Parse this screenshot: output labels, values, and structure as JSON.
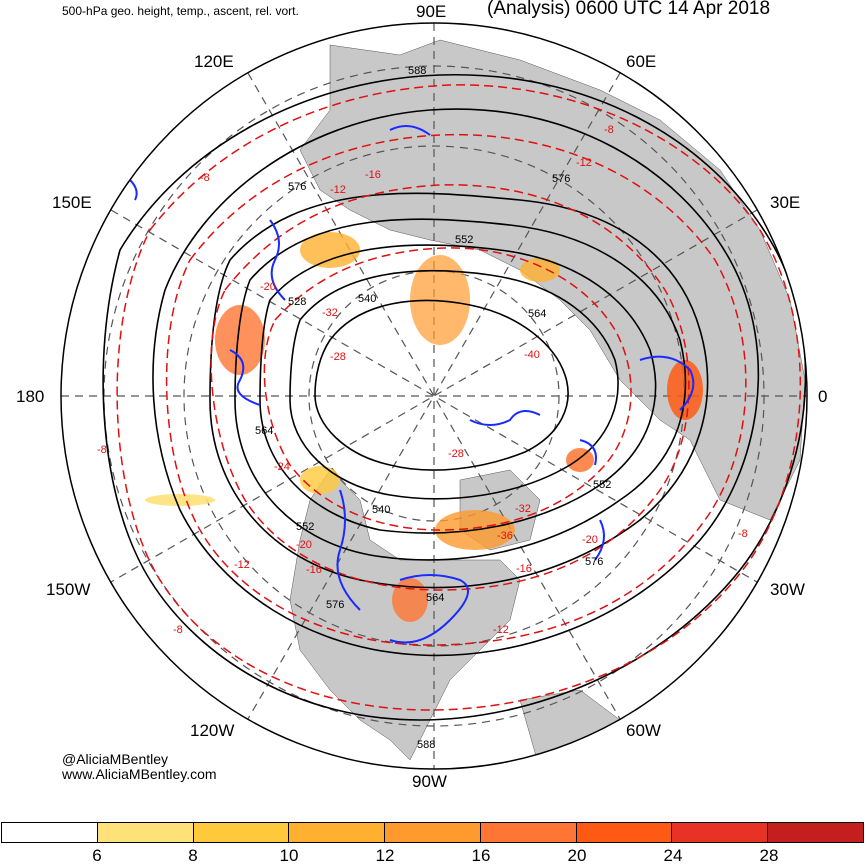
{
  "header": {
    "left_title": "500-hPa geo. height, temp., ascent, rel. vort.",
    "right_title": "(Analysis) 0600 UTC 14 Apr 2018"
  },
  "longitude_labels": {
    "n90e": "90E",
    "n60e": "60E",
    "n120e": "120E",
    "n30e": "30E",
    "n150e": "150E",
    "n0": "0",
    "n180": "180",
    "n150w": "150W",
    "n30w": "30W",
    "n120w": "120W",
    "n60w": "60W",
    "n90w": "90W"
  },
  "contour_labels": {
    "h588_top": "588",
    "h576_nw": "576",
    "h576_ne": "576",
    "h552_n": "552",
    "h540_n": "540",
    "h528": "528",
    "h564_e": "564",
    "h564_w": "564",
    "h540_s": "540",
    "h552_sw": "552",
    "h552_se": "552",
    "h576_se": "576",
    "h576_s": "576",
    "h588_bottom": "588",
    "h564_s": "564",
    "t_m8_top": "-8",
    "t_m8_w": "-8",
    "t_m8_e": "-8",
    "t_m8_sw": "-8",
    "t_m8_s": "-8",
    "t_m12_nw": "-12",
    "t_m12_ne": "-12",
    "t_m12_sw": "-12",
    "t_m12_se": "-12",
    "t_m16_n": "-16",
    "t_m16_s": "-16",
    "t_m16_se": "-16",
    "t_m20_w": "-20",
    "t_m20_sw": "-20",
    "t_m20_se": "-20",
    "t_m24_w": "-24",
    "t_m28_w": "-28",
    "t_m28_c": "-28",
    "t_m32_w": "-32",
    "t_m32_s": "-32",
    "t_m36_c": "-36",
    "t_m40_e": "-40"
  },
  "credit": {
    "handle": "@AliciaMBentley",
    "website": "www.AliciaMBentley.com"
  },
  "colorbar": {
    "colors": [
      "#ffffff",
      "#ffe17a",
      "#ffc93c",
      "#ffb030",
      "#ff9a2e",
      "#ff7533",
      "#ff5a14",
      "#e83226",
      "#c41e1e"
    ],
    "ticks": [
      "6",
      "8",
      "10",
      "12",
      "16",
      "20",
      "24",
      "28"
    ]
  }
}
